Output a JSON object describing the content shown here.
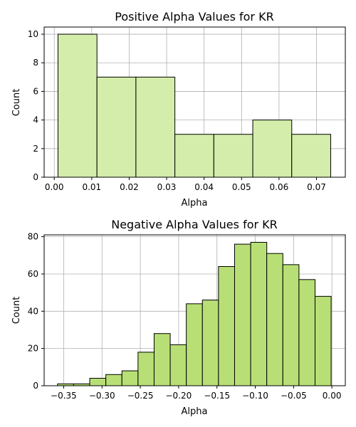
{
  "chart_data": [
    {
      "type": "bar",
      "title": "Positive Alpha Values for KR",
      "xlabel": "Alpha",
      "ylabel": "Count",
      "xlim": [
        -0.0027,
        0.0777
      ],
      "ylim": [
        0,
        10.5
      ],
      "xticks": [
        0.0,
        0.01,
        0.02,
        0.03,
        0.04,
        0.05,
        0.06,
        0.07
      ],
      "xtick_labels": [
        "0.00",
        "0.01",
        "0.02",
        "0.03",
        "0.04",
        "0.05",
        "0.06",
        "0.07"
      ],
      "yticks": [
        0,
        2,
        4,
        6,
        8,
        10
      ],
      "ytick_labels": [
        "0",
        "2",
        "4",
        "6",
        "8",
        "10"
      ],
      "grid": true,
      "color": "#d4edaa",
      "bins": [
        {
          "x0": 0.001,
          "x1": 0.0114,
          "count": 10
        },
        {
          "x0": 0.0114,
          "x1": 0.0218,
          "count": 7
        },
        {
          "x0": 0.0218,
          "x1": 0.0322,
          "count": 7
        },
        {
          "x0": 0.0322,
          "x1": 0.0426,
          "count": 3
        },
        {
          "x0": 0.0426,
          "x1": 0.053,
          "count": 3
        },
        {
          "x0": 0.053,
          "x1": 0.0634,
          "count": 4
        },
        {
          "x0": 0.0634,
          "x1": 0.0738,
          "count": 3
        }
      ]
    },
    {
      "type": "bar",
      "title": "Negative Alpha Values for KR",
      "xlabel": "Alpha",
      "ylabel": "Count",
      "xlim": [
        -0.3755,
        0.0175
      ],
      "ylim": [
        0,
        81
      ],
      "xticks": [
        -0.35,
        -0.3,
        -0.25,
        -0.2,
        -0.15,
        -0.1,
        -0.05,
        0.0
      ],
      "xtick_labels": [
        "−0.35",
        "−0.30",
        "−0.25",
        "−0.20",
        "−0.15",
        "−0.10",
        "−0.05",
        "0.00"
      ],
      "yticks": [
        0,
        20,
        40,
        60,
        80
      ],
      "ytick_labels": [
        "0",
        "20",
        "40",
        "60",
        "80"
      ],
      "grid": true,
      "color": "#b8df76",
      "bins": [
        {
          "x0": -0.358,
          "x1": -0.337,
          "count": 1
        },
        {
          "x0": -0.337,
          "x1": -0.316,
          "count": 1
        },
        {
          "x0": -0.316,
          "x1": -0.295,
          "count": 4
        },
        {
          "x0": -0.295,
          "x1": -0.274,
          "count": 6
        },
        {
          "x0": -0.274,
          "x1": -0.253,
          "count": 8
        },
        {
          "x0": -0.253,
          "x1": -0.232,
          "count": 18
        },
        {
          "x0": -0.232,
          "x1": -0.211,
          "count": 28
        },
        {
          "x0": -0.211,
          "x1": -0.19,
          "count": 22
        },
        {
          "x0": -0.19,
          "x1": -0.169,
          "count": 44
        },
        {
          "x0": -0.169,
          "x1": -0.148,
          "count": 46
        },
        {
          "x0": -0.148,
          "x1": -0.127,
          "count": 64
        },
        {
          "x0": -0.127,
          "x1": -0.106,
          "count": 76
        },
        {
          "x0": -0.106,
          "x1": -0.085,
          "count": 77
        },
        {
          "x0": -0.085,
          "x1": -0.064,
          "count": 71
        },
        {
          "x0": -0.064,
          "x1": -0.043,
          "count": 65
        },
        {
          "x0": -0.043,
          "x1": -0.022,
          "count": 57
        },
        {
          "x0": -0.022,
          "x1": -0.001,
          "count": 48
        }
      ]
    }
  ]
}
